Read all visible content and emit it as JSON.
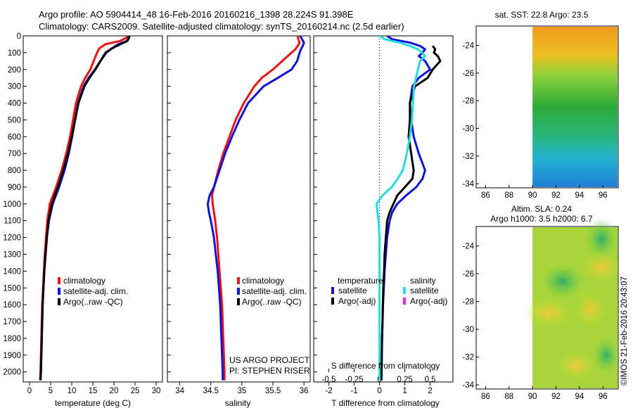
{
  "header": {
    "line1": "Argo profile: AO 5904414_48 16-Feb-2016 20160216_1398 28.224S 91.398E",
    "line2": "Climatology: CARS2009. Satellite-adjusted climatology: synTS_20160214.nc (2.5d earlier)"
  },
  "colors": {
    "climatology": "#ee1111",
    "satellite": "#1111dd",
    "argo": "#000000",
    "salinity_sat": "#22dddd",
    "salinity_argo": "#ee22ee"
  },
  "depth_ticks": [
    "0",
    "100",
    "200",
    "300",
    "400",
    "500",
    "600",
    "700",
    "800",
    "900",
    "1000",
    "1100",
    "1200",
    "1300",
    "1400",
    "1500",
    "1600",
    "1700",
    "1800",
    "1900",
    "2000"
  ],
  "chart_data": [
    {
      "type": "line",
      "xlabel": "temperature (deg C)",
      "xlim": [
        -1.5,
        31.5
      ],
      "xticks": [
        "0",
        "5",
        "10",
        "15",
        "20",
        "25",
        "30"
      ],
      "ylim": [
        0,
        2060
      ],
      "legend": [
        "climatology",
        "satellite-adj. clim.",
        "Argo(..raw -QC)"
      ],
      "depth": [
        0,
        10,
        30,
        50,
        75,
        100,
        150,
        200,
        250,
        300,
        400,
        500,
        600,
        700,
        800,
        900,
        1000,
        1100,
        1200,
        1300,
        1400,
        1500,
        1600,
        1700,
        1800,
        1900,
        2000,
        2050
      ],
      "series": [
        {
          "name": "climatology",
          "values": [
            23.2,
            23.0,
            21.5,
            18.0,
            16.5,
            16.0,
            15.2,
            14.4,
            13.2,
            12.2,
            11.0,
            10.3,
            9.6,
            8.7,
            7.6,
            6.3,
            4.8,
            4.2,
            3.9,
            3.6,
            3.4,
            3.2,
            3.0,
            2.9,
            2.8,
            2.7,
            2.6,
            2.5
          ]
        },
        {
          "name": "satellite-adj. clim.",
          "values": [
            23.5,
            23.4,
            23.1,
            21.0,
            19.5,
            18.2,
            16.8,
            15.5,
            14.0,
            12.8,
            11.5,
            10.8,
            10.1,
            9.3,
            8.3,
            7.0,
            5.5,
            4.6,
            4.1,
            3.8,
            3.5,
            3.3,
            3.1,
            3.0,
            2.9,
            2.8,
            2.7,
            2.6
          ]
        },
        {
          "name": "Argo(..raw -QC)",
          "values": [
            23.6,
            23.6,
            23.2,
            21.5,
            19.5,
            18.0,
            16.8,
            15.6,
            14.2,
            13.0,
            11.6,
            10.8,
            10.0,
            9.1,
            8.0,
            6.7,
            5.3,
            4.5,
            4.1,
            3.8,
            3.5,
            3.3,
            3.1,
            3.0,
            2.9,
            2.8,
            2.7,
            2.6
          ]
        }
      ]
    },
    {
      "type": "line",
      "xlabel": "salinity",
      "xlim": [
        33.8,
        36.1
      ],
      "xticks": [
        "34",
        "34.5",
        "35",
        "35.5",
        "36"
      ],
      "ylim": [
        0,
        2060
      ],
      "legend": [
        "climatology",
        "satellite-adj. clim.",
        "Argo(..raw -QC)"
      ],
      "annotation": [
        "US ARGO PROJECT",
        "PI: STEPHEN RISER"
      ],
      "depth": [
        0,
        20,
        40,
        60,
        80,
        100,
        150,
        200,
        250,
        300,
        400,
        500,
        600,
        700,
        800,
        900,
        950,
        1000,
        1050,
        1100,
        1200,
        1300,
        1400,
        1500,
        1600,
        1700,
        1800,
        1900,
        2000,
        2050
      ],
      "series": [
        {
          "name": "climatology",
          "values": [
            35.9,
            35.91,
            35.93,
            35.9,
            35.86,
            35.8,
            35.65,
            35.5,
            35.32,
            35.2,
            35.03,
            34.9,
            34.8,
            34.7,
            34.62,
            34.55,
            34.52,
            34.53,
            34.55,
            34.57,
            34.6,
            34.62,
            34.64,
            34.66,
            34.68,
            34.69,
            34.7,
            34.71,
            34.72,
            34.72
          ]
        },
        {
          "name": "satellite-adj. clim.",
          "values": [
            35.94,
            35.97,
            36.0,
            35.98,
            35.95,
            35.93,
            35.89,
            35.8,
            35.58,
            35.35,
            35.1,
            34.96,
            34.84,
            34.73,
            34.64,
            34.55,
            34.48,
            34.45,
            34.47,
            34.5,
            34.55,
            34.58,
            34.61,
            34.63,
            34.65,
            34.66,
            34.67,
            34.68,
            34.69,
            34.69
          ]
        },
        {
          "name": "Argo(..raw -QC)",
          "values": []
        }
      ]
    },
    {
      "type": "line",
      "xlabel": "T difference from climatology",
      "xlabel_top": "S difference from climatology",
      "xlim": [
        -2.6,
        2.9
      ],
      "xticks_T": [
        "-2",
        "-1",
        "0",
        "1",
        "2"
      ],
      "xticks_S": [
        "-0.5",
        "-0.25",
        "0",
        "0.25",
        "0.5"
      ],
      "ylim": [
        0,
        2060
      ],
      "legend_titles": [
        "temperature",
        "salinity"
      ],
      "legend": [
        "satellite",
        "Argo(-adj)",
        "satellite",
        "Argo(-adj)"
      ],
      "depth": [
        0,
        20,
        40,
        60,
        80,
        100,
        120,
        150,
        200,
        250,
        300,
        400,
        500,
        600,
        700,
        800,
        850,
        900,
        950,
        1000,
        1050,
        1100,
        1200,
        1300,
        1400,
        1500,
        1600,
        1700,
        1800,
        1900,
        2000,
        2050
      ],
      "series": [
        {
          "name": "temperature satellite",
          "values": [
            0.3,
            0.5,
            1.2,
            1.6,
            1.8,
            1.7,
            1.55,
            1.8,
            2.0,
            1.55,
            1.3,
            1.2,
            1.25,
            1.35,
            1.55,
            1.8,
            1.7,
            1.45,
            1.05,
            0.7,
            0.5,
            0.4,
            0.3,
            0.25,
            0.2,
            0.17,
            0.14,
            0.12,
            0.1,
            0.09,
            0.08,
            0.08
          ]
        },
        {
          "name": "temperature Argo(-adj)",
          "values": [
            null,
            null,
            null,
            2.1,
            2.2,
            2.15,
            2.3,
            2.4,
            2.1,
            1.9,
            1.4,
            1.2,
            1.2,
            1.15,
            1.25,
            1.35,
            1.3,
            1.0,
            0.7,
            0.55,
            0.4,
            0.3,
            0.25,
            0.2,
            0.18,
            0.15,
            0.13,
            0.12,
            0.1,
            0.09,
            0.08,
            0.08
          ]
        },
        {
          "name": "salinity satellite",
          "values": [
            0.0,
            0.05,
            0.2,
            0.3,
            0.38,
            0.42,
            0.45,
            0.4,
            0.38,
            0.36,
            0.34,
            0.33,
            0.32,
            0.3,
            0.27,
            0.23,
            0.18,
            0.12,
            0.03,
            -0.03,
            -0.02,
            -0.01,
            0.0,
            0.0,
            0.0,
            0.0,
            0.0,
            0.0,
            0.0,
            0.0,
            0.0,
            0.0
          ]
        },
        {
          "name": "salinity Argo(-adj)",
          "values": []
        }
      ]
    },
    {
      "type": "heatmap",
      "title": "sat. SST: 22.8 Argo: 23.5",
      "xlim": [
        85.2,
        97.3
      ],
      "ylim": [
        -34.3,
        -22.6
      ],
      "xticks": [
        "86",
        "88",
        "90",
        "92",
        "94",
        "96"
      ],
      "yticks": [
        "-24",
        "-26",
        "-28",
        "-30",
        "-32",
        "-34"
      ],
      "data_lon_range": [
        90,
        97.3
      ]
    },
    {
      "type": "heatmap",
      "title": "Altim. SLA: 0.24",
      "subtitle": "Argo h1000: 3.5 h2000: 6.7",
      "xlim": [
        85.2,
        97.3
      ],
      "ylim": [
        -34.3,
        -22.6
      ],
      "xticks": [
        "86",
        "88",
        "90",
        "92",
        "94",
        "96"
      ],
      "yticks": [
        "-24",
        "-26",
        "-28",
        "-30",
        "-32",
        "-34"
      ],
      "data_lon_range": [
        90,
        97.3
      ]
    }
  ],
  "side_label": "©IMOS 21-Feb-2016 20:43:07"
}
